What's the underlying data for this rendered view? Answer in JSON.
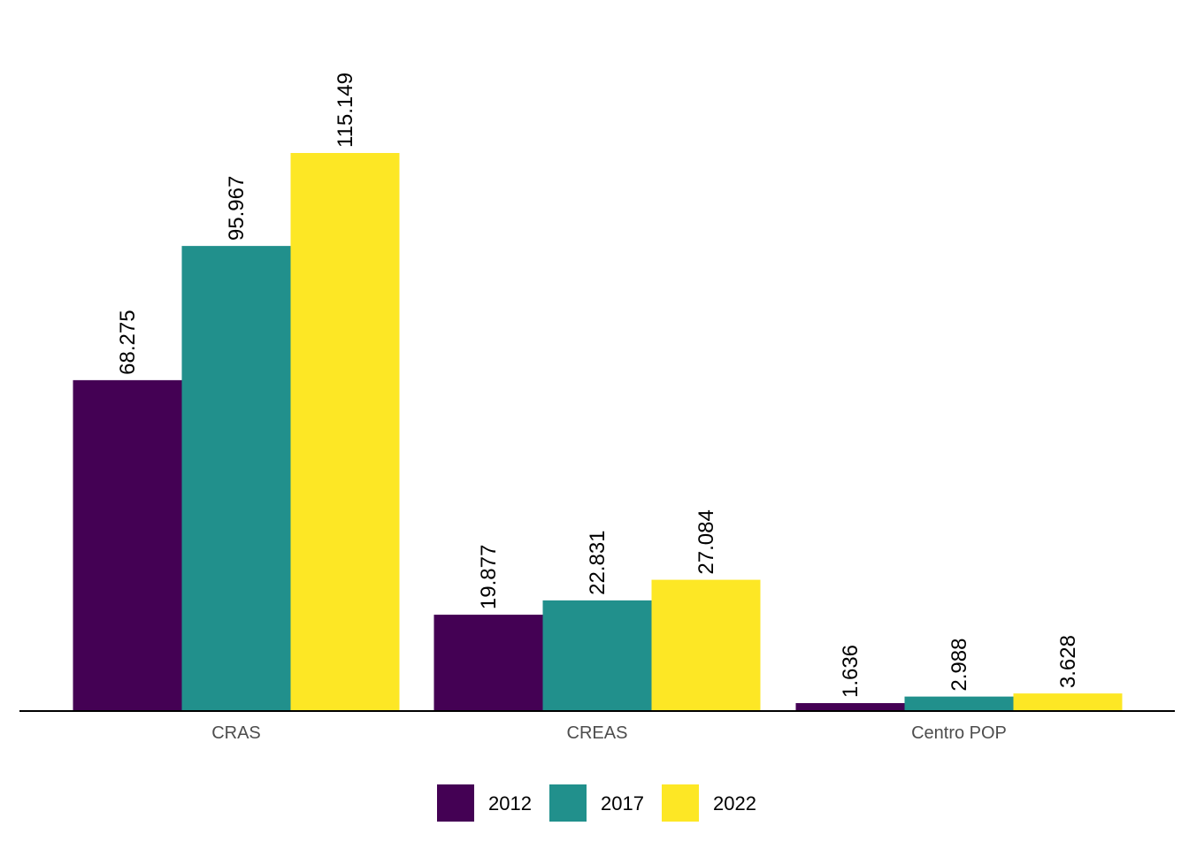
{
  "chart_data": {
    "type": "bar",
    "title": "",
    "xlabel": "",
    "ylabel": "",
    "categories": [
      "CRAS",
      "CREAS",
      "Centro POP"
    ],
    "series": [
      {
        "name": "2012",
        "color": "#440154",
        "values": [
          68.275,
          19.877,
          1.636
        ],
        "labels": [
          "68.275",
          "19.877",
          "1.636"
        ]
      },
      {
        "name": "2017",
        "color": "#21908C",
        "values": [
          95.967,
          22.831,
          2.988
        ],
        "labels": [
          "95.967",
          "22.831",
          "2.988"
        ]
      },
      {
        "name": "2022",
        "color": "#FDE725",
        "values": [
          115.149,
          27.084,
          3.628
        ],
        "labels": [
          "115.149",
          "27.084",
          "3.628"
        ]
      }
    ],
    "ylim": [
      0,
      115.149
    ],
    "grid": false,
    "legend_position": "bottom"
  }
}
